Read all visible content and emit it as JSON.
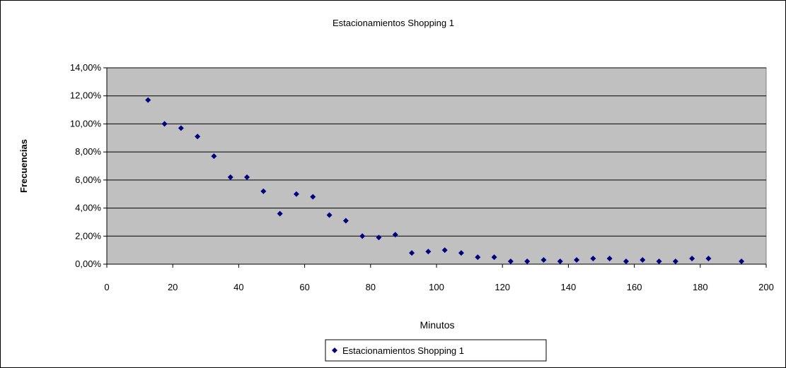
{
  "chart_data": {
    "type": "scatter",
    "title": "Estacionamientos Shopping 1",
    "xlabel": "Minutos",
    "ylabel": "Frecuencias",
    "xlim": [
      0,
      200
    ],
    "ylim": [
      0,
      0.14
    ],
    "x_ticks": [
      "0",
      "20",
      "40",
      "60",
      "80",
      "100",
      "120",
      "140",
      "160",
      "180",
      "200"
    ],
    "y_ticks": [
      "0,00%",
      "2,00%",
      "4,00%",
      "6,00%",
      "8,00%",
      "10,00%",
      "12,00%",
      "14,00%"
    ],
    "grid": "horizontal",
    "plot_background": "#c0c0c0",
    "marker_color": "#000080",
    "legend_position": "bottom",
    "series": [
      {
        "name": "Estacionamientos Shopping 1",
        "x": [
          12.5,
          17.5,
          22.5,
          27.5,
          32.5,
          37.5,
          42.5,
          47.5,
          52.5,
          57.5,
          62.5,
          67.5,
          72.5,
          77.5,
          82.5,
          87.5,
          92.5,
          97.5,
          102.5,
          107.5,
          112.5,
          117.5,
          122.5,
          127.5,
          132.5,
          137.5,
          142.5,
          147.5,
          152.5,
          157.5,
          162.5,
          167.5,
          172.5,
          177.5,
          182.5,
          192.5
        ],
        "y": [
          0.117,
          0.1,
          0.097,
          0.091,
          0.077,
          0.062,
          0.062,
          0.052,
          0.036,
          0.05,
          0.048,
          0.035,
          0.031,
          0.02,
          0.019,
          0.021,
          0.008,
          0.009,
          0.01,
          0.008,
          0.005,
          0.005,
          0.002,
          0.002,
          0.003,
          0.002,
          0.003,
          0.004,
          0.004,
          0.002,
          0.003,
          0.002,
          0.002,
          0.004,
          0.004,
          0.002
        ]
      }
    ]
  },
  "legend_label": "Estacionamientos Shopping 1"
}
